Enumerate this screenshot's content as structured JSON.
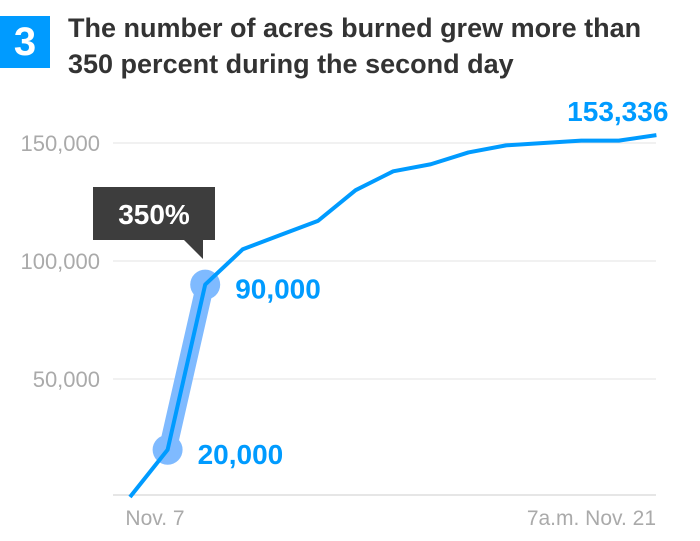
{
  "header": {
    "number": "3",
    "title": "The number of acres burned grew more than 350 percent during the second day"
  },
  "chart_data": {
    "type": "line",
    "title": "The number of acres burned grew more than 350 percent during the second day",
    "x": [
      0,
      1,
      2,
      3,
      4,
      5,
      6,
      7,
      8,
      9,
      10,
      11,
      12,
      13,
      14
    ],
    "values": [
      0,
      20000,
      90000,
      105000,
      111000,
      117000,
      130000,
      138000,
      141000,
      146000,
      149000,
      150000,
      151000,
      151000,
      153336
    ],
    "x_tick_labels": [
      {
        "index": 1,
        "label": "Nov. 7"
      },
      {
        "index": 14,
        "label": "7a.m. Nov. 21"
      }
    ],
    "y_ticks": [
      {
        "value": 50000,
        "label": "50,000"
      },
      {
        "value": 100000,
        "label": "100,000"
      },
      {
        "value": 150000,
        "label": "150,000"
      }
    ],
    "ylim": [
      0,
      150000
    ],
    "grid": true,
    "annotations": [
      {
        "index": 1,
        "label": "20,000"
      },
      {
        "index": 2,
        "label": "90,000"
      },
      {
        "index": 14,
        "label": "153,336"
      }
    ],
    "callout": {
      "label": "350%",
      "from_index": 1,
      "to_index": 2
    },
    "colors": {
      "line": "#009bff",
      "highlight": "#7fbaff",
      "callout": "#3d3d3d",
      "axis_text": "#aaaaaa"
    }
  }
}
